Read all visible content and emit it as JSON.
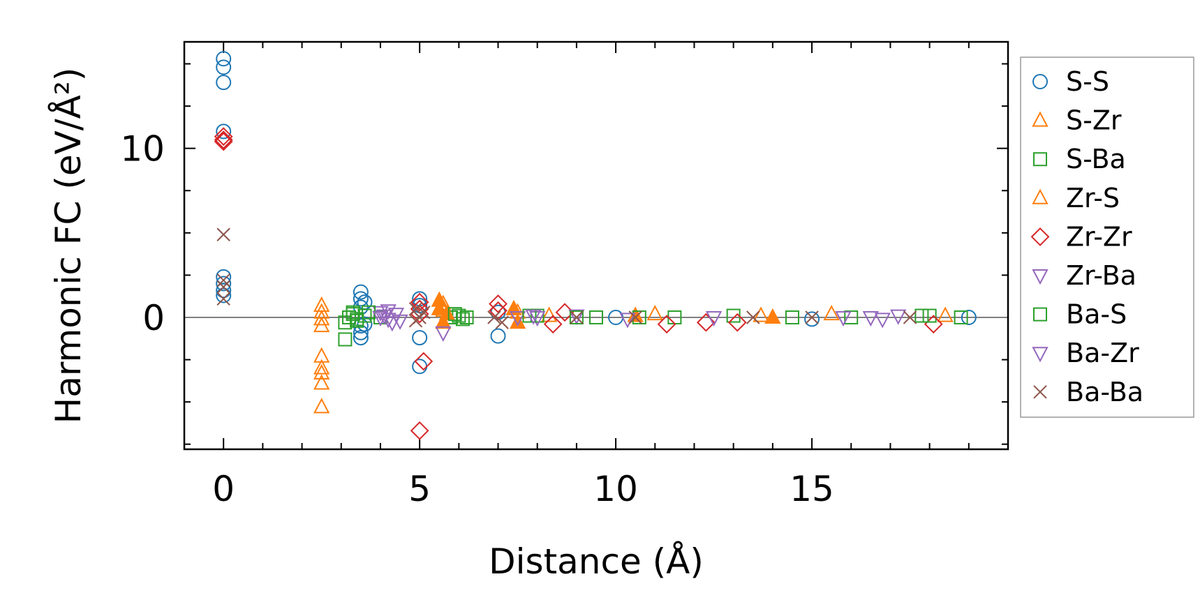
{
  "chart_data": {
    "type": "scatter",
    "title": "",
    "xlabel": "Distance (Å)",
    "ylabel": "Harmonic FC (eV/Å²)",
    "xlim": [
      -1,
      20
    ],
    "ylim": [
      -7.8,
      16.3
    ],
    "x_ticks": [
      0,
      5,
      10,
      15
    ],
    "y_ticks": [
      0,
      10
    ],
    "x_tick_labels": [
      "0",
      "5",
      "10",
      "15"
    ],
    "y_tick_labels": [
      "0",
      "10"
    ],
    "reference_line_y": 0,
    "legend_position": "right",
    "series": [
      {
        "name": "S-S",
        "marker": "circle",
        "color": "#1f77b4",
        "points": [
          [
            0,
            15.3
          ],
          [
            0,
            14.8
          ],
          [
            0,
            13.9
          ],
          [
            0,
            11.0
          ],
          [
            0,
            2.4
          ],
          [
            0,
            2.0
          ],
          [
            0,
            1.6
          ],
          [
            0,
            1.3
          ],
          [
            3.5,
            1.5
          ],
          [
            3.5,
            1.1
          ],
          [
            3.5,
            0.6
          ],
          [
            3.5,
            -0.5
          ],
          [
            3.5,
            -0.9
          ],
          [
            3.5,
            -1.2
          ],
          [
            3.6,
            0.9
          ],
          [
            3.6,
            -0.4
          ],
          [
            5.0,
            1.1
          ],
          [
            5.0,
            0.7
          ],
          [
            5.0,
            -1.2
          ],
          [
            5.0,
            -2.9
          ],
          [
            7.0,
            -1.1
          ],
          [
            7.0,
            0.3
          ],
          [
            10.0,
            0.0
          ],
          [
            15.0,
            -0.1
          ],
          [
            19.0,
            0.0
          ]
        ]
      },
      {
        "name": "S-Zr",
        "marker": "triangle-up-open",
        "color": "#ff7f0e",
        "points": [
          [
            2.5,
            0.7
          ],
          [
            2.5,
            0.3
          ],
          [
            2.5,
            -0.1
          ],
          [
            2.5,
            -0.5
          ],
          [
            2.5,
            -2.3
          ],
          [
            2.5,
            -3.0
          ],
          [
            2.5,
            -3.3
          ],
          [
            2.5,
            -3.9
          ],
          [
            2.5,
            -5.3
          ],
          [
            5.6,
            0.8
          ],
          [
            5.6,
            0.4
          ],
          [
            7.5,
            0.3
          ],
          [
            8.3,
            0.1
          ],
          [
            11.0,
            0.2
          ],
          [
            13.7,
            0.1
          ],
          [
            15.5,
            0.2
          ],
          [
            18.4,
            0.1
          ]
        ]
      },
      {
        "name": "S-Ba",
        "marker": "square-open",
        "color": "#2ca02c",
        "points": [
          [
            3.1,
            -0.3
          ],
          [
            3.1,
            -1.3
          ],
          [
            3.2,
            0.0
          ],
          [
            3.3,
            0.3
          ],
          [
            3.4,
            -0.2
          ],
          [
            3.6,
            0.1
          ],
          [
            4.0,
            0.0
          ],
          [
            5.8,
            0.0
          ],
          [
            6.0,
            0.1
          ],
          [
            6.2,
            0.0
          ],
          [
            8.0,
            0.1
          ],
          [
            9.5,
            0.0
          ],
          [
            11.5,
            0.0
          ],
          [
            13.0,
            0.1
          ],
          [
            16.0,
            0.0
          ],
          [
            18.0,
            0.1
          ],
          [
            18.8,
            0.0
          ]
        ]
      },
      {
        "name": "Zr-S",
        "marker": "triangle-up-filled",
        "color": "#ff7f0e",
        "points": [
          [
            5.5,
            1.0
          ],
          [
            5.5,
            0.5
          ],
          [
            5.6,
            -0.3
          ],
          [
            5.7,
            0.2
          ],
          [
            7.4,
            0.5
          ],
          [
            7.5,
            -0.3
          ],
          [
            10.5,
            0.1
          ],
          [
            14.0,
            0.0
          ]
        ]
      },
      {
        "name": "Zr-Zr",
        "marker": "diamond-open",
        "color": "#d62728",
        "points": [
          [
            0,
            10.7
          ],
          [
            0,
            10.5
          ],
          [
            0,
            10.4
          ],
          [
            5.0,
            0.9
          ],
          [
            5.0,
            0.5
          ],
          [
            5.0,
            0.2
          ],
          [
            5.1,
            -2.6
          ],
          [
            5.0,
            -6.7
          ],
          [
            7.0,
            0.8
          ],
          [
            7.0,
            0.4
          ],
          [
            8.4,
            -0.4
          ],
          [
            8.7,
            0.3
          ],
          [
            11.3,
            -0.4
          ],
          [
            12.3,
            -0.3
          ],
          [
            13.1,
            -0.3
          ],
          [
            18.1,
            -0.4
          ]
        ]
      },
      {
        "name": "Zr-Ba",
        "marker": "triangle-down-open",
        "color": "#9467bd",
        "points": [
          [
            4.0,
            0.3
          ],
          [
            4.1,
            0.1
          ],
          [
            4.2,
            -0.1
          ],
          [
            4.3,
            -0.3
          ],
          [
            4.4,
            0.2
          ],
          [
            5.6,
            -0.9
          ],
          [
            7.5,
            0.0
          ],
          [
            8.0,
            0.0
          ],
          [
            9.0,
            0.1
          ],
          [
            12.5,
            0.0
          ],
          [
            16.5,
            0.0
          ],
          [
            17.2,
            0.1
          ]
        ]
      },
      {
        "name": "Ba-S",
        "marker": "square-open",
        "color": "#2ca02c",
        "points": [
          [
            3.3,
            0.2
          ],
          [
            3.4,
            -0.1
          ],
          [
            3.7,
            0.3
          ],
          [
            5.9,
            0.2
          ],
          [
            6.1,
            -0.1
          ],
          [
            7.8,
            0.1
          ],
          [
            9.0,
            0.0
          ],
          [
            10.6,
            0.0
          ],
          [
            14.5,
            0.0
          ],
          [
            17.8,
            0.1
          ]
        ]
      },
      {
        "name": "Ba-Zr",
        "marker": "triangle-down-open",
        "color": "#9467bd",
        "points": [
          [
            4.0,
            0.0
          ],
          [
            4.2,
            0.4
          ],
          [
            4.5,
            -0.2
          ],
          [
            7.9,
            0.1
          ],
          [
            10.3,
            -0.1
          ],
          [
            15.8,
            0.0
          ],
          [
            16.8,
            -0.1
          ]
        ]
      },
      {
        "name": "Ba-Ba",
        "marker": "x",
        "color": "#8c564b",
        "points": [
          [
            0,
            4.9
          ],
          [
            0,
            2.2
          ],
          [
            0,
            1.8
          ],
          [
            0,
            1.1
          ],
          [
            4.9,
            0.5
          ],
          [
            4.9,
            -0.2
          ],
          [
            5.0,
            0.0
          ],
          [
            5.1,
            0.3
          ],
          [
            6.9,
            0.0
          ],
          [
            7.1,
            -0.3
          ],
          [
            9.0,
            0.0
          ],
          [
            10.5,
            0.0
          ],
          [
            13.5,
            0.0
          ],
          [
            15.0,
            0.0
          ],
          [
            17.5,
            0.0
          ]
        ]
      }
    ]
  }
}
